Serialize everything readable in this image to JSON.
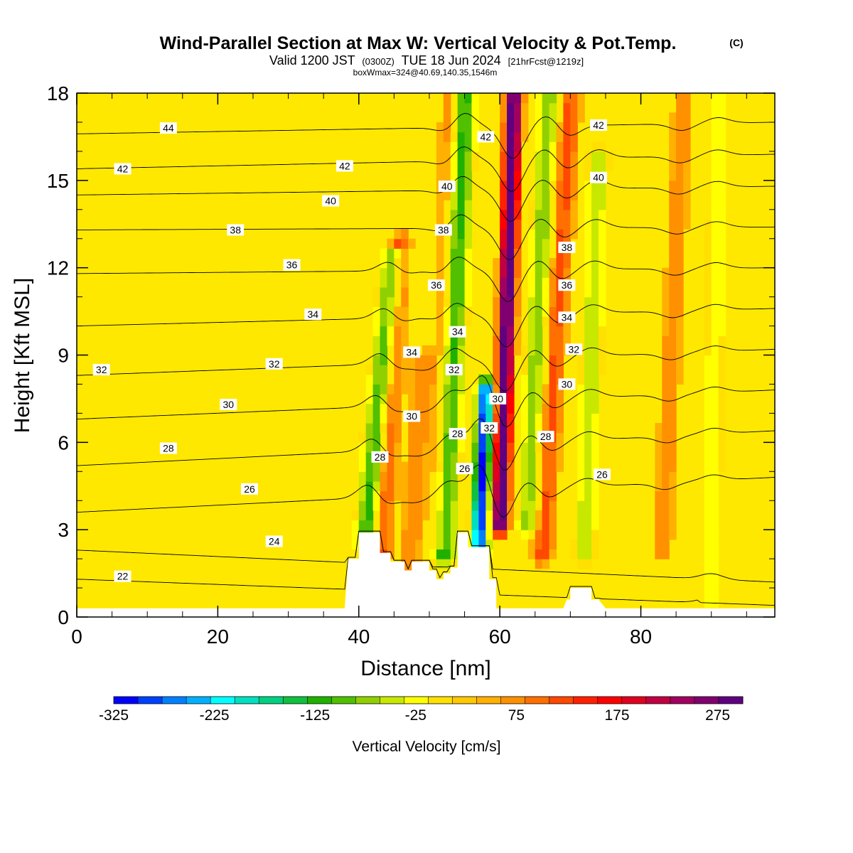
{
  "header": {
    "title": "Wind-Parallel Section at Max W: Vertical Velocity & Pot.Temp.",
    "copyright": "(C)",
    "valid_prefix": "Valid 1200 JST",
    "valid_utc": "(0300Z)",
    "valid_date": "TUE 18 Jun 2024",
    "forecast": "[21hrFcst@1219z]",
    "box_info": "boxWmax=324@40.69,140.35,1546m"
  },
  "chart_data": {
    "type": "heatmap",
    "xlabel": "Distance [nm]",
    "ylabel": "Height [Kft MSL]",
    "xlim": [
      0,
      99
    ],
    "ylim": [
      0,
      18
    ],
    "x_ticks": [
      "0",
      "20",
      "40",
      "60",
      "80"
    ],
    "y_ticks": [
      "0",
      "3",
      "6",
      "9",
      "12",
      "15",
      "18"
    ],
    "colorbar": {
      "label": "Vertical Velocity [cm/s]",
      "range": [
        -325,
        300
      ],
      "tick_labels": [
        "-325",
        "-225",
        "-125",
        "-25",
        "75",
        "175",
        "275"
      ],
      "colors": [
        "#0000ff",
        "#0040ff",
        "#0080ff",
        "#00b0ff",
        "#00ffff",
        "#00e0c0",
        "#00d080",
        "#10c040",
        "#20b000",
        "#50c000",
        "#90d000",
        "#c8e800",
        "#ffff00",
        "#ffe000",
        "#ffc800",
        "#ffb000",
        "#ff9000",
        "#ff7000",
        "#ff4800",
        "#ff2000",
        "#ff0000",
        "#e00020",
        "#c00040",
        "#a00060",
        "#800070",
        "#600080"
      ]
    },
    "updraft_bands": [
      {
        "x_low": 43,
        "x_high": 46,
        "h_low": 2,
        "h_high": 13,
        "w": 100
      },
      {
        "x_low": 60,
        "x_high": 62,
        "h_low": 3,
        "h_high": 18,
        "w": 300
      },
      {
        "x_low": 51,
        "x_high": 53,
        "h_low": 2.5,
        "h_high": 18,
        "w": 60
      },
      {
        "x_low": 66,
        "x_high": 70,
        "h_low": 2,
        "h_high": 18,
        "w": 100
      },
      {
        "x_low": 83,
        "x_high": 86,
        "h_low": 2,
        "h_high": 18,
        "w": 60
      },
      {
        "x_low": 47,
        "x_high": 49,
        "h_low": 1,
        "h_high": 9,
        "w": 60
      }
    ],
    "downdraft_bands": [
      {
        "x_low": 41,
        "x_high": 45,
        "h_low": 2.5,
        "h_high": 12.5,
        "w": -150
      },
      {
        "x_low": 57,
        "x_high": 58,
        "h_low": 2,
        "h_high": 8,
        "w": -325
      },
      {
        "x_low": 52,
        "x_high": 55,
        "h_low": 2,
        "h_high": 18,
        "w": -150
      },
      {
        "x_low": 64,
        "x_high": 67,
        "h_low": 3,
        "h_high": 18,
        "w": -100
      },
      {
        "x_low": 72,
        "x_high": 74,
        "h_low": 2,
        "h_high": 16,
        "w": -75
      },
      {
        "x_low": 90,
        "x_high": 91,
        "h_low": 0.5,
        "h_high": 18,
        "w": -50
      }
    ],
    "terrain": {
      "x": [
        0,
        36,
        36.5,
        38,
        38.5,
        40,
        40,
        43,
        43,
        44.5,
        44.5,
        46.5,
        46.5,
        47.5,
        47.5,
        50,
        50,
        51,
        51,
        52,
        52,
        53,
        53,
        54,
        54,
        55.5,
        55.5,
        58.5,
        58.5,
        59.5,
        59.5,
        64,
        69,
        69.5,
        70,
        70,
        73,
        73,
        74,
        75,
        99
      ],
      "h": [
        0.3,
        0.3,
        0.3,
        0.3,
        2.0,
        2.0,
        2.9,
        2.9,
        2.2,
        2.2,
        1.9,
        1.9,
        1.6,
        1.6,
        1.9,
        1.9,
        1.6,
        1.6,
        1.3,
        1.3,
        1.5,
        1.5,
        1.7,
        1.7,
        2.9,
        2.9,
        2.4,
        2.4,
        1.3,
        1.3,
        0.3,
        0.3,
        0.3,
        0.6,
        0.6,
        1.0,
        1.0,
        0.6,
        0.6,
        0.3,
        0.3
      ]
    },
    "theta_contours": {
      "series": [
        {
          "value": 22,
          "h_left": 1.3,
          "h_right": 0.4
        },
        {
          "value": 24,
          "h_left": 2.3,
          "h_right": 1.2
        },
        {
          "value": 26,
          "h_left": 3.6,
          "h_right": 4.8
        },
        {
          "value": 28,
          "h_left": 5.2,
          "h_right": 6.4
        },
        {
          "value": 30,
          "h_left": 6.8,
          "h_right": 7.8
        },
        {
          "value": 32,
          "h_left": 8.3,
          "h_right": 9.2
        },
        {
          "value": 34,
          "h_left": 10.0,
          "h_right": 10.6
        },
        {
          "value": 36,
          "h_left": 11.8,
          "h_right": 12.0
        },
        {
          "value": 38,
          "h_left": 13.3,
          "h_right": 13.4
        },
        {
          "value": 40,
          "h_left": 14.5,
          "h_right": 14.8
        },
        {
          "value": 42,
          "h_left": 15.4,
          "h_right": 15.9
        },
        {
          "value": 44,
          "h_left": 16.6,
          "h_right": 17.0
        }
      ],
      "labels": [
        {
          "text": "44",
          "x": 13,
          "h": 16.8
        },
        {
          "text": "42",
          "x": 6.5,
          "h": 15.4
        },
        {
          "text": "42",
          "x": 38,
          "h": 15.5
        },
        {
          "text": "42",
          "x": 58,
          "h": 16.5
        },
        {
          "text": "42",
          "x": 74,
          "h": 16.9
        },
        {
          "text": "40",
          "x": 36,
          "h": 14.3
        },
        {
          "text": "40",
          "x": 52.5,
          "h": 14.8
        },
        {
          "text": "40",
          "x": 74,
          "h": 15.1
        },
        {
          "text": "38",
          "x": 22.5,
          "h": 13.3
        },
        {
          "text": "38",
          "x": 52,
          "h": 13.3
        },
        {
          "text": "38",
          "x": 69.5,
          "h": 12.7
        },
        {
          "text": "36",
          "x": 30.5,
          "h": 12.1
        },
        {
          "text": "36",
          "x": 51,
          "h": 11.4
        },
        {
          "text": "36",
          "x": 69.5,
          "h": 11.4
        },
        {
          "text": "34",
          "x": 33.5,
          "h": 10.4
        },
        {
          "text": "34",
          "x": 54,
          "h": 9.8
        },
        {
          "text": "34",
          "x": 69.5,
          "h": 10.3
        },
        {
          "text": "34",
          "x": 47.5,
          "h": 9.1
        },
        {
          "text": "32",
          "x": 3.5,
          "h": 8.5
        },
        {
          "text": "32",
          "x": 28,
          "h": 8.7
        },
        {
          "text": "32",
          "x": 53.5,
          "h": 8.5
        },
        {
          "text": "32",
          "x": 70.5,
          "h": 9.2
        },
        {
          "text": "32",
          "x": 58.5,
          "h": 6.5
        },
        {
          "text": "30",
          "x": 21.5,
          "h": 7.3
        },
        {
          "text": "30",
          "x": 47.5,
          "h": 6.9
        },
        {
          "text": "30",
          "x": 69.5,
          "h": 8.0
        },
        {
          "text": "30",
          "x": 59.7,
          "h": 7.5
        },
        {
          "text": "28",
          "x": 13,
          "h": 5.8
        },
        {
          "text": "28",
          "x": 43,
          "h": 5.5
        },
        {
          "text": "28",
          "x": 54,
          "h": 6.3
        },
        {
          "text": "28",
          "x": 66.5,
          "h": 6.2
        },
        {
          "text": "26",
          "x": 24.5,
          "h": 4.4
        },
        {
          "text": "26",
          "x": 55,
          "h": 5.1
        },
        {
          "text": "26",
          "x": 74.5,
          "h": 4.9
        },
        {
          "text": "24",
          "x": 28,
          "h": 2.6
        },
        {
          "text": "22",
          "x": 6.5,
          "h": 1.4
        }
      ]
    }
  }
}
